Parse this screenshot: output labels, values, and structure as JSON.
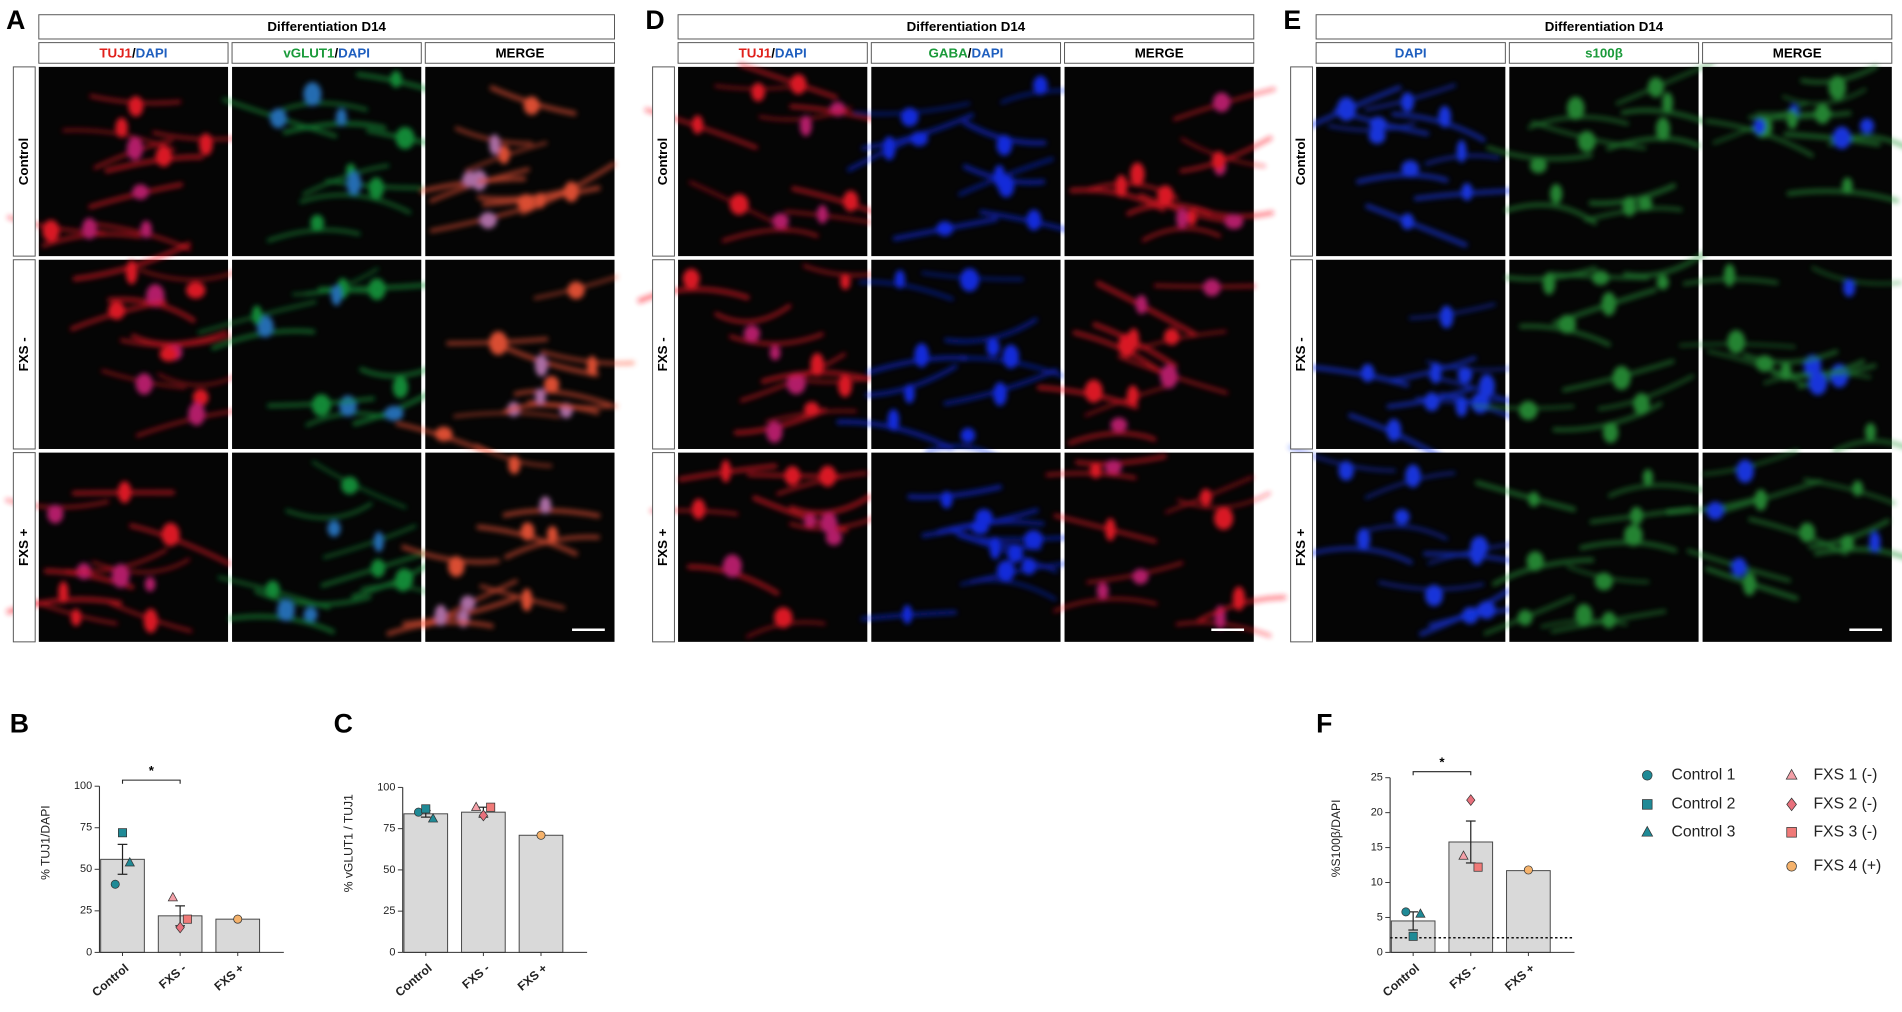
{
  "panels": [
    {
      "letter": "A",
      "header": "Differentiation D14",
      "columns": [
        [
          {
            "text": "TUJ1",
            "color": "#e0201b"
          },
          {
            "text": "/",
            "color": "#000000"
          },
          {
            "text": "DAPI",
            "color": "#1f5fbf"
          }
        ],
        [
          {
            "text": "vGLUT1",
            "color": "#1a9a3a"
          },
          {
            "text": "/",
            "color": "#000000"
          },
          {
            "text": "DAPI",
            "color": "#1f5fbf"
          }
        ],
        [
          {
            "text": "MERGE",
            "color": "#000000"
          }
        ]
      ],
      "rows": [
        "Control",
        "FXS -",
        "FXS +"
      ]
    },
    {
      "letter": "D",
      "header": "Differentiation D14",
      "columns": [
        [
          {
            "text": "TUJ1",
            "color": "#e0201b"
          },
          {
            "text": "/",
            "color": "#000000"
          },
          {
            "text": "DAPI",
            "color": "#1f5fbf"
          }
        ],
        [
          {
            "text": "GABA",
            "color": "#1a9a3a"
          },
          {
            "text": "/",
            "color": "#000000"
          },
          {
            "text": "DAPI",
            "color": "#1f5fbf"
          }
        ],
        [
          {
            "text": "MERGE",
            "color": "#000000"
          }
        ]
      ],
      "rows": [
        "Control",
        "FXS -",
        "FXS +"
      ]
    },
    {
      "letter": "E",
      "header": "Differentiation D14",
      "columns": [
        [
          {
            "text": "DAPI",
            "color": "#1f5fbf"
          }
        ],
        [
          {
            "text": "s100β",
            "color": "#1a9a3a"
          }
        ],
        [
          {
            "text": "MERGE",
            "color": "#000000"
          }
        ]
      ],
      "rows": [
        "Control",
        "FXS -",
        "FXS +"
      ]
    }
  ],
  "legend": [
    {
      "name": "Control 1",
      "color": "#1f8a96",
      "marker": "circle"
    },
    {
      "name": "Control 2",
      "color": "#1f8a96",
      "marker": "square"
    },
    {
      "name": "Control 3",
      "color": "#1f8a96",
      "marker": "triangle"
    },
    {
      "name": "FXS 1 (-)",
      "color": "#f4a0a8",
      "marker": "triangle"
    },
    {
      "name": "FXS 2 (-)",
      "color": "#e8707c",
      "marker": "diamond"
    },
    {
      "name": "FXS 3 (-)",
      "color": "#f07a78",
      "marker": "square"
    },
    {
      "name": "FXS 4 (+)",
      "color": "#f5b26b",
      "marker": "circle"
    }
  ],
  "chart_data": [
    {
      "type": "bar",
      "letter": "B",
      "ylabel": "% TUJ1/DAPI",
      "categories": [
        "Control",
        "FXS -",
        "FXS +"
      ],
      "values": [
        56,
        22,
        20
      ],
      "errors": [
        9,
        6,
        null
      ],
      "color": "#d9d9d9",
      "ylim": [
        0,
        100
      ],
      "yticks": [
        0,
        25,
        50,
        75,
        100
      ],
      "points": [
        [
          41,
          null,
          null
        ],
        [
          72,
          null,
          null
        ],
        [
          54,
          null,
          null
        ],
        [
          null,
          33,
          null
        ],
        [
          null,
          15,
          null
        ],
        [
          null,
          20,
          null
        ],
        [
          null,
          null,
          20
        ]
      ],
      "significance": {
        "label": "*",
        "between": [
          0,
          1
        ]
      }
    },
    {
      "type": "bar",
      "letter": "C",
      "ylabel": "% vGLUT1 / TUJ1",
      "categories": [
        "Control",
        "FXS -",
        "FXS +"
      ],
      "values": [
        84,
        85,
        71
      ],
      "errors": [
        2,
        3,
        null
      ],
      "color": "#d9d9d9",
      "ylim": [
        0,
        100
      ],
      "yticks": [
        0,
        25,
        50,
        75,
        100
      ],
      "points": [
        [
          85,
          null,
          null
        ],
        [
          87,
          null,
          null
        ],
        [
          81,
          null,
          null
        ],
        [
          null,
          88,
          null
        ],
        [
          null,
          83,
          null
        ],
        [
          null,
          88,
          null
        ],
        [
          null,
          null,
          71
        ]
      ]
    },
    {
      "type": "bar",
      "letter": "F",
      "ylabel": "%S100β/DAPI",
      "categories": [
        "Control",
        "FXS -",
        "FXS +"
      ],
      "values": [
        4.5,
        15.8,
        11.7
      ],
      "errors": [
        1.3,
        3,
        null
      ],
      "color": "#d9d9d9",
      "ylim": [
        0,
        25
      ],
      "yticks": [
        0,
        5,
        10,
        15,
        20,
        25
      ],
      "points": [
        [
          5.8,
          null,
          null
        ],
        [
          2.3,
          null,
          null
        ],
        [
          5.5,
          null,
          null
        ],
        [
          null,
          13.8,
          null
        ],
        [
          null,
          21.8,
          null
        ],
        [
          null,
          12.2,
          null
        ],
        [
          null,
          null,
          11.8
        ]
      ],
      "reference_line": 2.1,
      "significance": {
        "label": "*",
        "between": [
          0,
          1
        ]
      }
    }
  ]
}
